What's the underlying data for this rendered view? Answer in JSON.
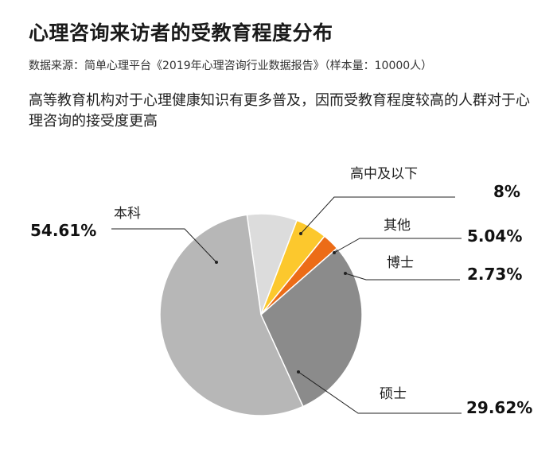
{
  "header": {
    "title": "心理咨询来访者的受教育程度分布",
    "source": "数据来源：简单心理平台《2019年心理咨询行业数据报告》（样本量：10000人）",
    "description": "高等教育机构对于心理健康知识有更多普及，因而受教育程度较高的人群对于心理咨询的接受度更高"
  },
  "chart_data": {
    "type": "pie",
    "title": "心理咨询来访者的受教育程度分布",
    "slices": [
      {
        "label": "高中及以下",
        "value": 8,
        "value_label": "8%",
        "color": "#dcdcdc"
      },
      {
        "label": "其他",
        "value": 5.04,
        "value_label": "5.04%",
        "color": "#fcc82d"
      },
      {
        "label": "博士",
        "value": 2.73,
        "value_label": "2.73%",
        "color": "#ec6c17"
      },
      {
        "label": "硕士",
        "value": 29.62,
        "value_label": "29.62%",
        "color": "#8b8b8b"
      },
      {
        "label": "本科",
        "value": 54.61,
        "value_label": "54.61%",
        "color": "#b7b7b7"
      }
    ]
  }
}
